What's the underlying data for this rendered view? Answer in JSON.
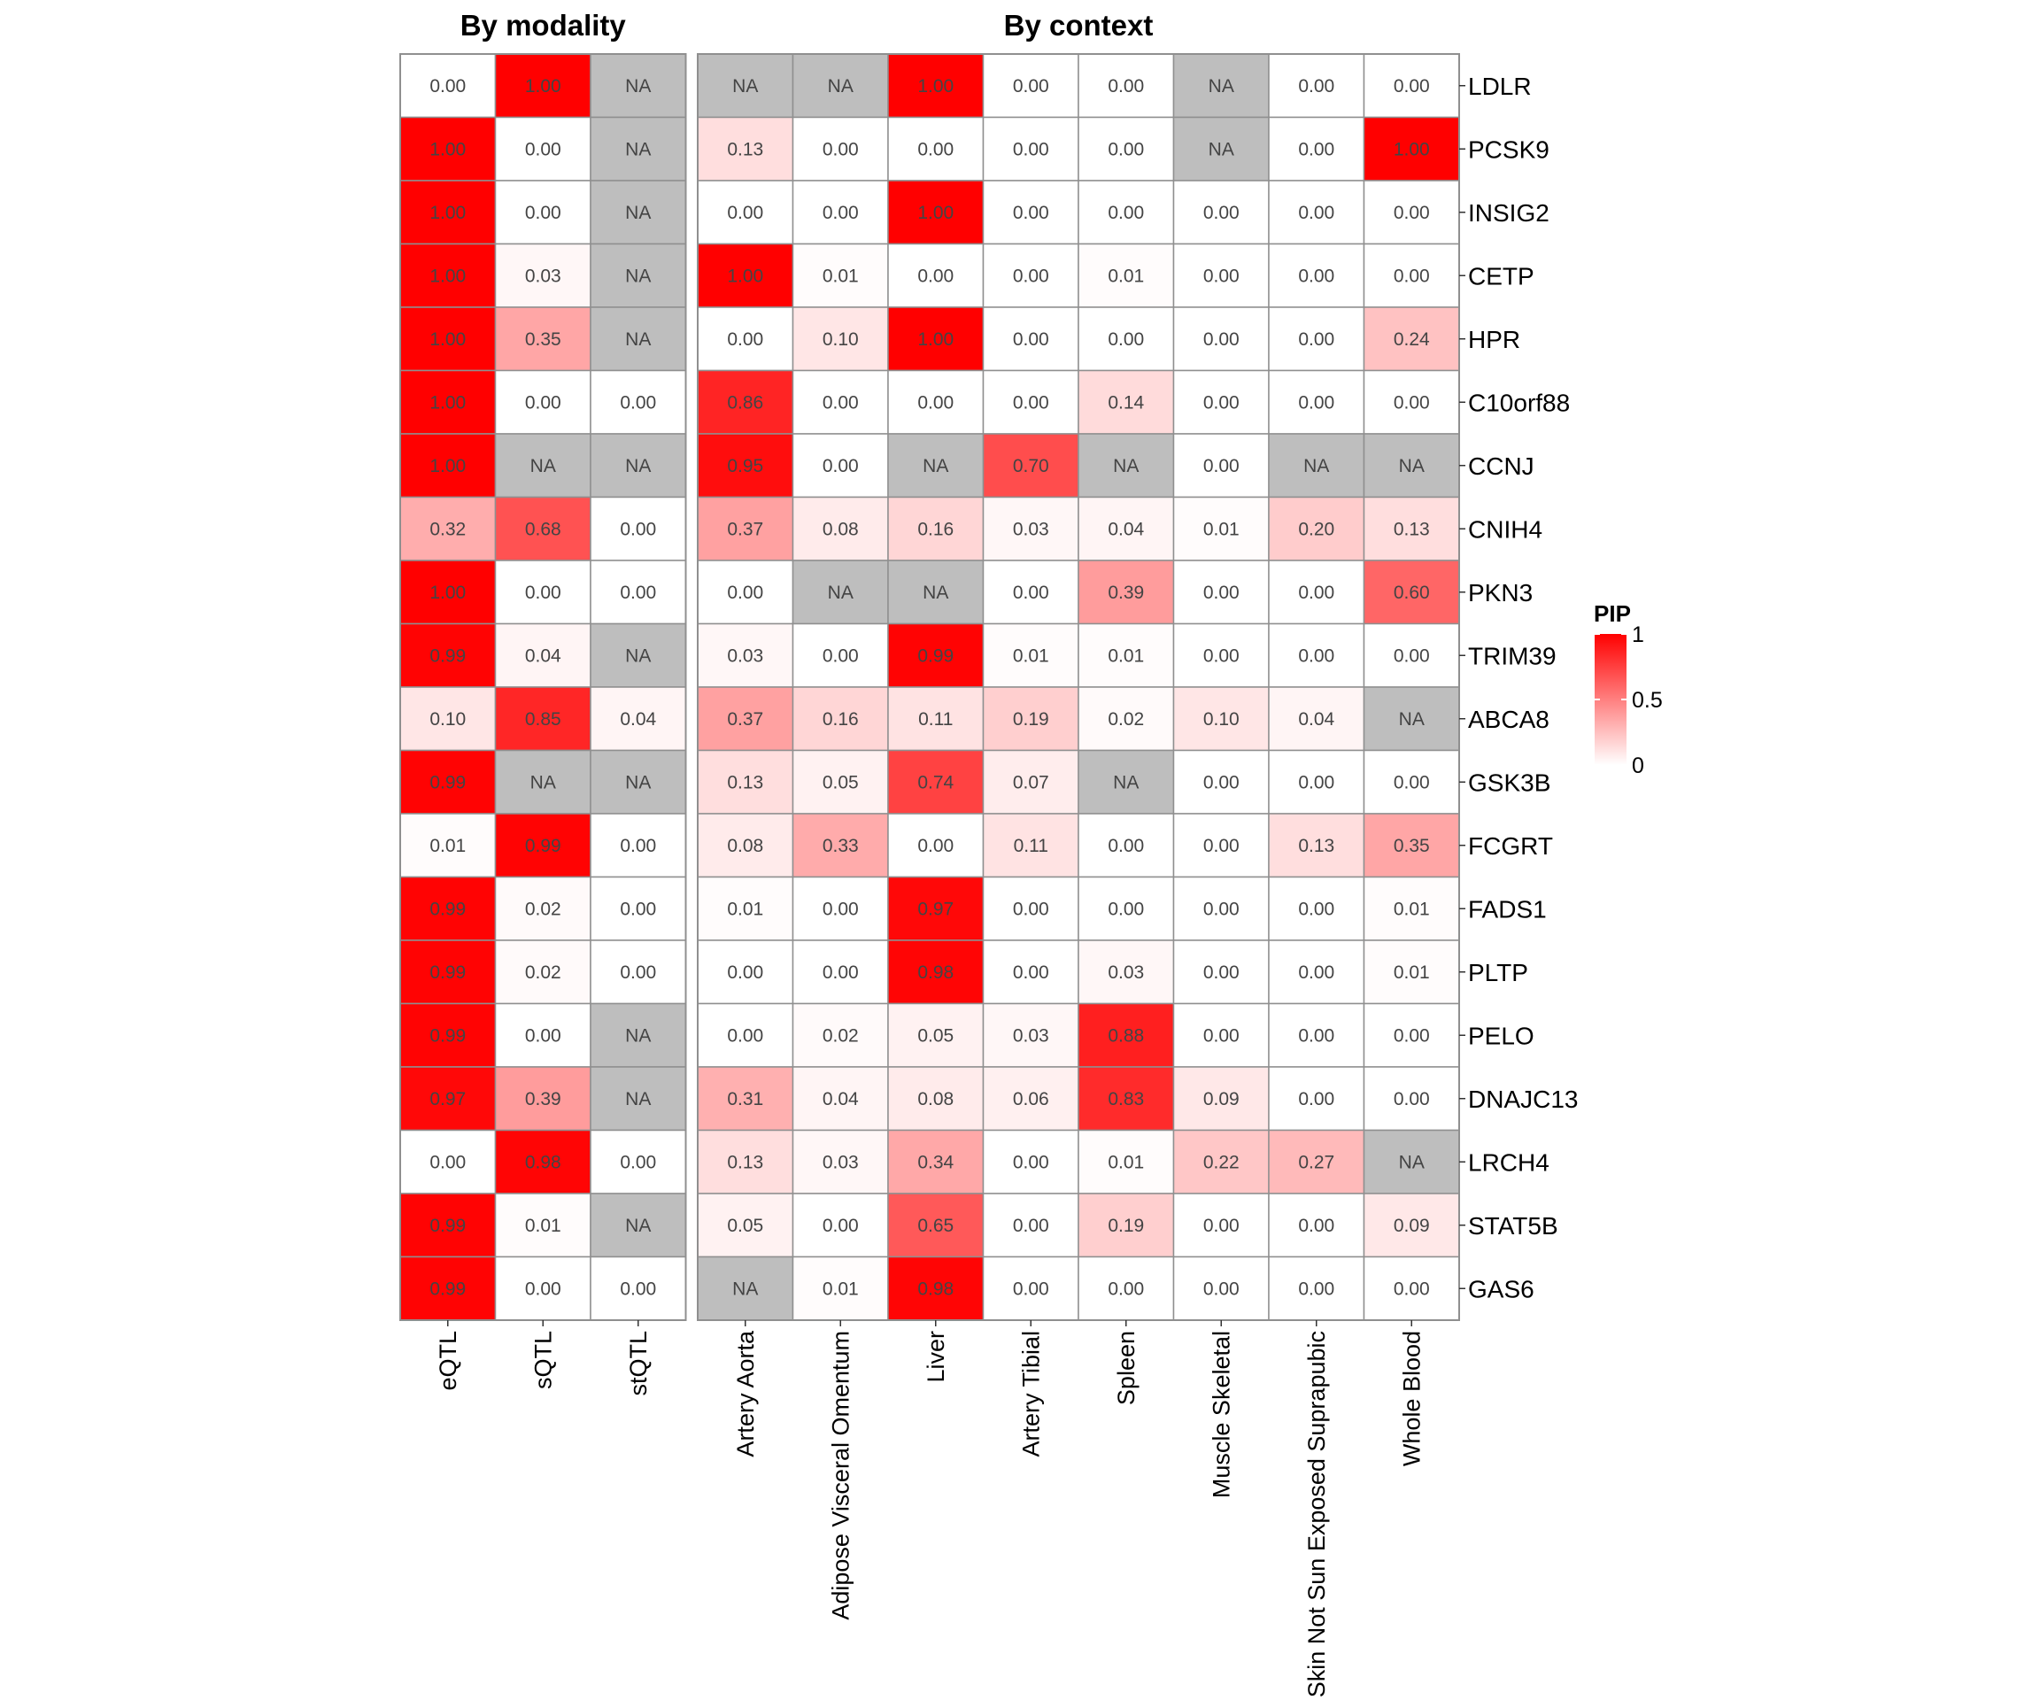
{
  "chart_data": {
    "type": "heatmap",
    "legend": {
      "title": "PIP",
      "ticks": [
        "1",
        "0.5",
        "0"
      ],
      "min": 0,
      "max": 1,
      "low_color": "#ffffff",
      "high_color": "#ff0000",
      "na_color": "#bebebe",
      "placement": "right"
    },
    "rows": [
      "LDLR",
      "PCSK9",
      "INSIG2",
      "CETP",
      "HPR",
      "C10orf88",
      "CCNJ",
      "CNIH4",
      "PKN3",
      "TRIM39",
      "ABCA8",
      "GSK3B",
      "FCGRT",
      "FADS1",
      "PLTP",
      "PELO",
      "DNAJC13",
      "LRCH4",
      "STAT5B",
      "GAS6"
    ],
    "panels": [
      {
        "title": "By modality",
        "columns": [
          "eQTL",
          "sQTL",
          "stQTL"
        ],
        "values": [
          [
            0.0,
            1.0,
            null
          ],
          [
            1.0,
            0.0,
            null
          ],
          [
            1.0,
            0.0,
            null
          ],
          [
            1.0,
            0.03,
            null
          ],
          [
            1.0,
            0.35,
            null
          ],
          [
            1.0,
            0.0,
            0.0
          ],
          [
            1.0,
            null,
            null
          ],
          [
            0.32,
            0.68,
            0.0
          ],
          [
            1.0,
            0.0,
            0.0
          ],
          [
            0.99,
            0.04,
            null
          ],
          [
            0.1,
            0.85,
            0.04
          ],
          [
            0.99,
            null,
            null
          ],
          [
            0.01,
            0.99,
            0.0
          ],
          [
            0.99,
            0.02,
            0.0
          ],
          [
            0.99,
            0.02,
            0.0
          ],
          [
            0.99,
            0.0,
            null
          ],
          [
            0.97,
            0.39,
            null
          ],
          [
            0.0,
            0.98,
            0.0
          ],
          [
            0.99,
            0.01,
            null
          ],
          [
            0.99,
            0.0,
            0.0
          ]
        ],
        "labels": [
          [
            "0.00",
            "1.00",
            "NA"
          ],
          [
            "1.00",
            "0.00",
            "NA"
          ],
          [
            "1.00",
            "0.00",
            "NA"
          ],
          [
            "1.00",
            "0.03",
            "NA"
          ],
          [
            "1.00",
            "0.35",
            "NA"
          ],
          [
            "1.00",
            "0.00",
            "0.00"
          ],
          [
            "1.00",
            "NA",
            "NA"
          ],
          [
            "0.32",
            "0.68",
            "0.00"
          ],
          [
            "1.00",
            "0.00",
            "0.00"
          ],
          [
            "0.99",
            "0.04",
            "NA"
          ],
          [
            "0.10",
            "0.85",
            "0.04"
          ],
          [
            "0.99",
            "NA",
            "NA"
          ],
          [
            "0.01",
            "0.99",
            "0.00"
          ],
          [
            "0.99",
            "0.02",
            "0.00"
          ],
          [
            "0.99",
            "0.02",
            "0.00"
          ],
          [
            "0.99",
            "0.00",
            "NA"
          ],
          [
            "0.97",
            "0.39",
            "NA"
          ],
          [
            "0.00",
            "0.98",
            "0.00"
          ],
          [
            "0.99",
            "0.01",
            "NA"
          ],
          [
            "0.99",
            "0.00",
            "0.00"
          ]
        ]
      },
      {
        "title": "By context",
        "columns": [
          "Artery Aorta",
          "Adipose Visceral Omentum",
          "Liver",
          "Artery Tibial",
          "Spleen",
          "Muscle Skeletal",
          "Skin Not Sun Exposed Suprapubic",
          "Whole Blood"
        ],
        "values": [
          [
            null,
            null,
            1.0,
            0.0,
            0.0,
            null,
            0.0,
            0.0
          ],
          [
            0.13,
            0.0,
            0.0,
            0.0,
            0.0,
            null,
            0.0,
            1.0
          ],
          [
            0.0,
            0.0,
            1.0,
            0.0,
            0.0,
            0.0,
            0.0,
            0.0
          ],
          [
            1.0,
            0.01,
            0.0,
            0.0,
            0.01,
            0.0,
            0.0,
            0.0
          ],
          [
            0.0,
            0.1,
            1.0,
            0.0,
            0.0,
            0.0,
            0.0,
            0.24
          ],
          [
            0.86,
            0.0,
            0.0,
            0.0,
            0.14,
            0.0,
            0.0,
            0.0
          ],
          [
            0.95,
            0.0,
            null,
            0.7,
            null,
            0.0,
            null,
            null
          ],
          [
            0.37,
            0.08,
            0.16,
            0.03,
            0.04,
            0.01,
            0.2,
            0.13
          ],
          [
            0.0,
            null,
            null,
            0.0,
            0.39,
            0.0,
            0.0,
            0.6
          ],
          [
            0.03,
            0.0,
            0.99,
            0.01,
            0.01,
            0.0,
            0.0,
            0.0
          ],
          [
            0.37,
            0.16,
            0.11,
            0.19,
            0.02,
            0.1,
            0.04,
            null
          ],
          [
            0.13,
            0.05,
            0.74,
            0.07,
            null,
            0.0,
            0.0,
            0.0
          ],
          [
            0.08,
            0.33,
            0.0,
            0.11,
            0.0,
            0.0,
            0.13,
            0.35
          ],
          [
            0.01,
            0.0,
            0.97,
            0.0,
            0.0,
            0.0,
            0.0,
            0.01
          ],
          [
            0.0,
            0.0,
            0.98,
            0.0,
            0.03,
            0.0,
            0.0,
            0.01
          ],
          [
            0.0,
            0.02,
            0.05,
            0.03,
            0.88,
            0.0,
            0.0,
            0.0
          ],
          [
            0.31,
            0.04,
            0.08,
            0.06,
            0.83,
            0.09,
            0.0,
            0.0
          ],
          [
            0.13,
            0.03,
            0.34,
            0.0,
            0.01,
            0.22,
            0.27,
            null
          ],
          [
            0.05,
            0.0,
            0.65,
            0.0,
            0.19,
            0.0,
            0.0,
            0.09
          ],
          [
            null,
            0.01,
            0.98,
            0.0,
            0.0,
            0.0,
            0.0,
            0.0
          ]
        ],
        "labels": [
          [
            "NA",
            "NA",
            "1.00",
            "0.00",
            "0.00",
            "NA",
            "0.00",
            "0.00"
          ],
          [
            "0.13",
            "0.00",
            "0.00",
            "0.00",
            "0.00",
            "NA",
            "0.00",
            "1.00"
          ],
          [
            "0.00",
            "0.00",
            "1.00",
            "0.00",
            "0.00",
            "0.00",
            "0.00",
            "0.00"
          ],
          [
            "1.00",
            "0.01",
            "0.00",
            "0.00",
            "0.01",
            "0.00",
            "0.00",
            "0.00"
          ],
          [
            "0.00",
            "0.10",
            "1.00",
            "0.00",
            "0.00",
            "0.00",
            "0.00",
            "0.24"
          ],
          [
            "0.86",
            "0.00",
            "0.00",
            "0.00",
            "0.14",
            "0.00",
            "0.00",
            "0.00"
          ],
          [
            "0.95",
            "0.00",
            "NA",
            "0.70",
            "NA",
            "0.00",
            "NA",
            "NA"
          ],
          [
            "0.37",
            "0.08",
            "0.16",
            "0.03",
            "0.04",
            "0.01",
            "0.20",
            "0.13"
          ],
          [
            "0.00",
            "NA",
            "NA",
            "0.00",
            "0.39",
            "0.00",
            "0.00",
            "0.60"
          ],
          [
            "0.03",
            "0.00",
            "0.99",
            "0.01",
            "0.01",
            "0.00",
            "0.00",
            "0.00"
          ],
          [
            "0.37",
            "0.16",
            "0.11",
            "0.19",
            "0.02",
            "0.10",
            "0.04",
            "NA"
          ],
          [
            "0.13",
            "0.05",
            "0.74",
            "0.07",
            "NA",
            "0.00",
            "0.00",
            "0.00"
          ],
          [
            "0.08",
            "0.33",
            "0.00",
            "0.11",
            "0.00",
            "0.00",
            "0.13",
            "0.35"
          ],
          [
            "0.01",
            "0.00",
            "0.97",
            "0.00",
            "0.00",
            "0.00",
            "0.00",
            "0.01"
          ],
          [
            "0.00",
            "0.00",
            "0.98",
            "0.00",
            "0.03",
            "0.00",
            "0.00",
            "0.01"
          ],
          [
            "0.00",
            "0.02",
            "0.05",
            "0.03",
            "0.88",
            "0.00",
            "0.00",
            "0.00"
          ],
          [
            "0.31",
            "0.04",
            "0.08",
            "0.06",
            "0.83",
            "0.09",
            "0.00",
            "0.00"
          ],
          [
            "0.13",
            "0.03",
            "0.34",
            "0.00",
            "0.01",
            "0.22",
            "0.27",
            "NA"
          ],
          [
            "0.05",
            "0.00",
            "0.65",
            "0.00",
            "0.19",
            "0.00",
            "0.00",
            "0.09"
          ],
          [
            "NA",
            "0.01",
            "0.98",
            "0.00",
            "0.00",
            "0.00",
            "0.00",
            "0.00"
          ]
        ]
      }
    ]
  }
}
